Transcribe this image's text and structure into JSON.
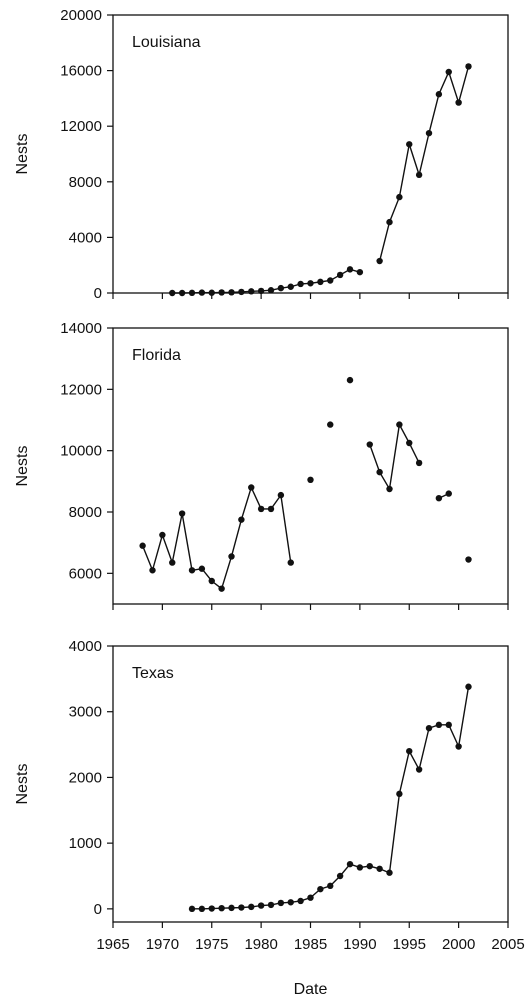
{
  "chart_data": [
    {
      "type": "line",
      "title": "Louisiana",
      "ylabel": "Nests",
      "xlabel": "",
      "xlim": [
        1965,
        2005
      ],
      "ylim": [
        0,
        20000
      ],
      "yticks": [
        0,
        4000,
        8000,
        12000,
        16000,
        20000
      ],
      "xticks": [
        1965,
        1970,
        1975,
        1980,
        1985,
        1990,
        1995,
        2000,
        2005
      ],
      "show_xtick_labels": false,
      "grid": false,
      "series": [
        {
          "points": [
            [
              1971,
              0
            ],
            [
              1972,
              0
            ],
            [
              1973,
              10
            ],
            [
              1974,
              30
            ],
            [
              1975,
              20
            ],
            [
              1976,
              40
            ],
            [
              1977,
              50
            ],
            [
              1978,
              80
            ],
            [
              1979,
              120
            ],
            [
              1980,
              150
            ],
            [
              1981,
              200
            ],
            [
              1982,
              350
            ],
            [
              1983,
              450
            ],
            [
              1984,
              650
            ],
            [
              1985,
              700
            ],
            [
              1986,
              800
            ],
            [
              1987,
              900
            ],
            [
              1988,
              1300
            ],
            [
              1989,
              1700
            ],
            [
              1990,
              1500
            ],
            null,
            [
              1992,
              2300
            ],
            [
              1993,
              5100
            ],
            [
              1994,
              6900
            ],
            [
              1995,
              10700
            ],
            [
              1996,
              8500
            ],
            [
              1997,
              11500
            ],
            [
              1998,
              14300
            ],
            [
              1999,
              15900
            ],
            [
              2000,
              13700
            ],
            [
              2001,
              16300
            ]
          ]
        }
      ]
    },
    {
      "type": "line",
      "title": "Florida",
      "ylabel": "Nests",
      "xlabel": "",
      "xlim": [
        1965,
        2005
      ],
      "ylim": [
        5000,
        14000
      ],
      "yticks": [
        6000,
        8000,
        10000,
        12000,
        14000
      ],
      "xticks": [
        1965,
        1970,
        1975,
        1980,
        1985,
        1990,
        1995,
        2000,
        2005
      ],
      "show_xtick_labels": false,
      "grid": false,
      "series": [
        {
          "points": [
            [
              1968,
              6900
            ],
            [
              1969,
              6100
            ],
            [
              1970,
              7250
            ],
            [
              1971,
              6350
            ],
            [
              1972,
              7950
            ],
            [
              1973,
              6100
            ],
            [
              1974,
              6150
            ],
            [
              1975,
              5750
            ],
            [
              1976,
              5500
            ],
            [
              1977,
              6550
            ],
            [
              1978,
              7750
            ],
            [
              1979,
              8800
            ],
            [
              1980,
              8100
            ],
            [
              1981,
              8100
            ],
            [
              1982,
              8550
            ],
            [
              1983,
              6350
            ],
            null,
            [
              1985,
              9050
            ],
            null,
            [
              1987,
              10850
            ],
            null,
            [
              1989,
              12300
            ],
            null,
            [
              1991,
              10200
            ],
            [
              1992,
              9300
            ],
            [
              1993,
              8750
            ],
            [
              1994,
              10850
            ],
            [
              1995,
              10250
            ],
            [
              1996,
              9600
            ],
            null,
            [
              1998,
              8450
            ],
            [
              1999,
              8600
            ],
            null,
            [
              2001,
              6450
            ]
          ]
        }
      ]
    },
    {
      "type": "line",
      "title": "Texas",
      "ylabel": "Nests",
      "xlabel": "Date",
      "xlim": [
        1965,
        2005
      ],
      "ylim": [
        -200,
        4000
      ],
      "yticks": [
        0,
        1000,
        2000,
        3000,
        4000
      ],
      "xticks": [
        1965,
        1970,
        1975,
        1980,
        1985,
        1990,
        1995,
        2000,
        2005
      ],
      "show_xtick_labels": true,
      "grid": false,
      "series": [
        {
          "points": [
            [
              1973,
              0
            ],
            [
              1974,
              0
            ],
            [
              1975,
              5
            ],
            [
              1976,
              10
            ],
            [
              1977,
              15
            ],
            [
              1978,
              20
            ],
            [
              1979,
              30
            ],
            [
              1980,
              50
            ],
            [
              1981,
              60
            ],
            [
              1982,
              90
            ],
            [
              1983,
              100
            ],
            [
              1984,
              120
            ],
            [
              1985,
              170
            ],
            [
              1986,
              300
            ],
            [
              1987,
              350
            ],
            [
              1988,
              500
            ],
            [
              1989,
              680
            ],
            [
              1990,
              630
            ],
            [
              1991,
              650
            ],
            [
              1992,
              610
            ],
            [
              1993,
              550
            ],
            [
              1994,
              1750
            ],
            [
              1995,
              2400
            ],
            [
              1996,
              2120
            ],
            [
              1997,
              2750
            ],
            [
              1998,
              2800
            ],
            [
              1999,
              2800
            ],
            [
              2000,
              2470
            ],
            [
              2001,
              3380
            ]
          ]
        }
      ]
    }
  ]
}
